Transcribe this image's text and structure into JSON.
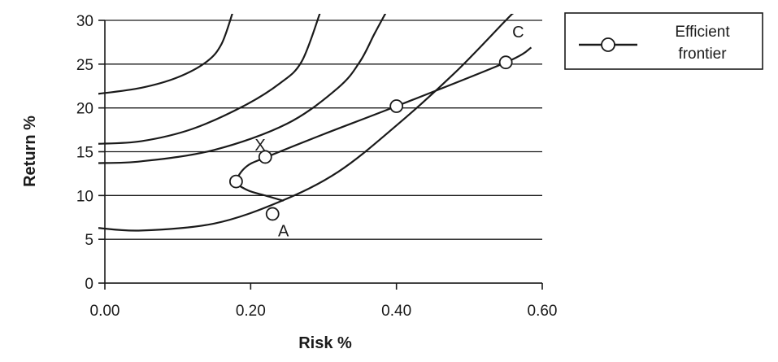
{
  "chart_data": {
    "type": "line",
    "xlabel": "Risk %",
    "ylabel": "Return %",
    "xlim": [
      0.0,
      0.6
    ],
    "ylim": [
      0,
      30
    ],
    "x_ticks": [
      "0.00",
      "0.20",
      "0.40",
      "0.60"
    ],
    "y_ticks": [
      "0",
      "5",
      "10",
      "15",
      "20",
      "25",
      "30"
    ],
    "grid": "horizontal",
    "legend_position": "right",
    "legend": [
      "Efficient",
      "frontier"
    ],
    "series": [
      {
        "name": "Efficient frontier",
        "points": [
          {
            "x": 0.23,
            "y": 7.9
          },
          {
            "x": 0.18,
            "y": 11.6
          },
          {
            "x": 0.22,
            "y": 14.4
          },
          {
            "x": 0.4,
            "y": 20.2
          },
          {
            "x": 0.55,
            "y": 25.2
          }
        ],
        "line": [
          [
            0.245,
            9.4
          ],
          [
            0.22,
            10.0
          ],
          [
            0.196,
            10.6
          ],
          [
            0.181,
            11.6
          ],
          [
            0.194,
            13.3
          ],
          [
            0.222,
            14.4
          ],
          [
            0.3,
            17.0
          ],
          [
            0.4,
            20.2
          ],
          [
            0.55,
            25.2
          ],
          [
            0.585,
            26.9
          ]
        ]
      }
    ],
    "curves": [
      {
        "points": [
          [
            -0.01,
            21.6
          ],
          [
            0.05,
            22.3
          ],
          [
            0.1,
            23.5
          ],
          [
            0.14,
            25.3
          ],
          [
            0.16,
            27.3
          ],
          [
            0.175,
            30.8
          ]
        ]
      },
      {
        "points": [
          [
            -0.01,
            15.9
          ],
          [
            0.05,
            16.2
          ],
          [
            0.12,
            17.6
          ],
          [
            0.19,
            20.2
          ],
          [
            0.24,
            22.8
          ],
          [
            0.27,
            25.3
          ],
          [
            0.295,
            30.8
          ]
        ]
      },
      {
        "points": [
          [
            -0.01,
            13.7
          ],
          [
            0.05,
            13.9
          ],
          [
            0.15,
            15.2
          ],
          [
            0.25,
            18.2
          ],
          [
            0.32,
            22.3
          ],
          [
            0.35,
            25.3
          ],
          [
            0.37,
            28.5
          ],
          [
            0.385,
            30.8
          ]
        ]
      },
      {
        "points": [
          [
            -0.01,
            6.3
          ],
          [
            0.05,
            6.0
          ],
          [
            0.15,
            6.8
          ],
          [
            0.24,
            9.3
          ],
          [
            0.32,
            12.7
          ],
          [
            0.4,
            18.0
          ],
          [
            0.48,
            24.0
          ],
          [
            0.55,
            30.0
          ],
          [
            0.56,
            30.8
          ]
        ]
      }
    ],
    "annotations": [
      {
        "text": "X",
        "x": 0.213,
        "y": 15.8
      },
      {
        "text": "A",
        "x": 0.245,
        "y": 6.0
      },
      {
        "text": "C",
        "x": 0.567,
        "y": 28.7
      }
    ]
  }
}
